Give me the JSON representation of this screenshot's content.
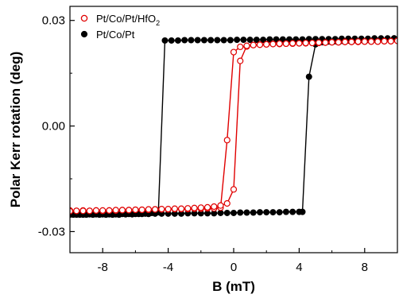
{
  "chart_data": {
    "type": "line",
    "xlabel": "B  (mT)",
    "ylabel": "Polar Kerr rotation (deg)",
    "xlim": [
      -10,
      10
    ],
    "ylim": [
      -0.036,
      0.034
    ],
    "x_ticks": [
      "-8",
      "-4",
      "0",
      "4",
      "8"
    ],
    "x_tick_values": [
      -8,
      -4,
      0,
      4,
      8
    ],
    "y_ticks": [
      "0.03",
      "0.00",
      "-0.03"
    ],
    "y_tick_values": [
      0.03,
      0.0,
      -0.03
    ],
    "legend": {
      "placement": "top-left"
    },
    "series": [
      {
        "name": "Pt/Co/Pt/HfO",
        "name_subscript": "2",
        "color": "#e00000",
        "marker": "open-circle",
        "branches": [
          {
            "x": [
              -10,
              -9.6,
              -9.2,
              -8.8,
              -8.4,
              -8.0,
              -7.6,
              -7.2,
              -6.8,
              -6.4,
              -6.0,
              -5.6,
              -5.2,
              -4.8,
              -4.4,
              -4.0,
              -3.6,
              -3.2,
              -2.8,
              -2.4,
              -2.0,
              -1.6,
              -1.2,
              -0.8,
              -0.4,
              0.0,
              0.4,
              0.8,
              1.2,
              1.6,
              2.0,
              2.4,
              2.8,
              3.2,
              3.6,
              4.0,
              4.4,
              4.8,
              5.2,
              5.6,
              6.0,
              6.4,
              6.8,
              7.2,
              7.6,
              8.0,
              8.4,
              8.8,
              9.2,
              9.6,
              10
            ],
            "y": [
              -0.024,
              -0.0241,
              -0.024,
              -0.0241,
              -0.024,
              -0.0241,
              -0.024,
              -0.024,
              -0.0239,
              -0.0239,
              -0.0238,
              -0.0238,
              -0.0238,
              -0.0237,
              -0.0237,
              -0.0237,
              -0.0236,
              -0.0236,
              -0.0236,
              -0.0235,
              -0.0235,
              -0.0234,
              -0.0234,
              -0.0232,
              -0.004,
              0.021,
              0.0225,
              0.0226,
              0.023,
              0.0231,
              0.0232,
              0.0233,
              0.0233,
              0.0234,
              0.0234,
              0.0235,
              0.0235,
              0.0236,
              0.0236,
              0.0237,
              0.0238,
              0.0238,
              0.0239,
              0.0239,
              0.0239,
              0.024,
              0.024,
              0.024,
              0.0241,
              0.0241,
              0.0242
            ]
          },
          {
            "x": [
              10,
              9.6,
              9.2,
              8.8,
              8.4,
              8.0,
              7.6,
              7.2,
              6.8,
              6.4,
              6.0,
              5.6,
              5.2,
              4.8,
              4.4,
              4.0,
              3.6,
              3.2,
              2.8,
              2.4,
              2.0,
              1.6,
              1.2,
              0.8,
              0.4,
              0.0,
              -0.4,
              -0.8,
              -1.2,
              -1.6,
              -2.0,
              -2.4,
              -2.8,
              -3.2,
              -3.6,
              -4.0,
              -4.4,
              -4.8,
              -5.2,
              -5.6,
              -6.0,
              -6.4,
              -6.8,
              -7.2,
              -7.6,
              -8.0,
              -8.4,
              -8.8,
              -9.2,
              -9.6,
              -10
            ],
            "y": [
              0.0242,
              0.0241,
              0.0241,
              0.024,
              0.024,
              0.024,
              0.024,
              0.0239,
              0.0239,
              0.0238,
              0.0238,
              0.0237,
              0.0237,
              0.0236,
              0.0236,
              0.0235,
              0.0235,
              0.0234,
              0.0234,
              0.0233,
              0.0232,
              0.0231,
              0.023,
              0.0228,
              0.0185,
              -0.018,
              -0.022,
              -0.0226,
              -0.0229,
              -0.0231,
              -0.0232,
              -0.0233,
              -0.0234,
              -0.0235,
              -0.0235,
              -0.0236,
              -0.0236,
              -0.0237,
              -0.0237,
              -0.0238,
              -0.0238,
              -0.0239,
              -0.0239,
              -0.0239,
              -0.024,
              -0.024,
              -0.024,
              -0.0241,
              -0.0241,
              -0.0241,
              -0.0242
            ]
          }
        ]
      },
      {
        "name": "Pt/Co/Pt",
        "color": "#000000",
        "marker": "filled-circle",
        "branches": [
          {
            "x": [
              -10,
              -9.6,
              -9.2,
              -8.8,
              -8.4,
              -8.0,
              -7.6,
              -7.2,
              -6.8,
              -6.4,
              -6.0,
              -5.6,
              -5.2,
              -4.8,
              -4.4,
              -4.0,
              -3.6,
              -3.2,
              -2.8,
              -2.4,
              -2.0,
              -1.6,
              -1.2,
              -0.8,
              -0.4,
              0.0,
              0.4,
              0.8,
              1.2,
              1.6,
              2.0,
              2.4,
              2.8,
              3.2,
              3.6,
              4.0,
              4.2,
              4.6,
              5.0,
              5.4,
              5.8,
              6.2,
              6.6,
              7.0,
              7.4,
              7.8,
              8.2,
              8.6,
              9.0,
              9.4,
              9.8
            ],
            "y": [
              -0.0252,
              -0.0252,
              -0.0252,
              -0.0251,
              -0.0251,
              -0.0251,
              -0.0251,
              -0.0251,
              -0.025,
              -0.025,
              -0.025,
              -0.025,
              -0.025,
              -0.0249,
              -0.0249,
              -0.0249,
              -0.0249,
              -0.0249,
              -0.0248,
              -0.0248,
              -0.0248,
              -0.0248,
              -0.0248,
              -0.0247,
              -0.0247,
              -0.0247,
              -0.0246,
              -0.0246,
              -0.0246,
              -0.0245,
              -0.0245,
              -0.0245,
              -0.0245,
              -0.0244,
              -0.0244,
              -0.0244,
              -0.0244,
              0.014,
              0.0232,
              0.0238,
              0.024,
              0.0241,
              0.0242,
              0.0243,
              0.0244,
              0.0245,
              0.0245,
              0.0246,
              0.0247,
              0.0248,
              0.0249
            ]
          },
          {
            "x": [
              9.8,
              9.4,
              9.0,
              8.6,
              8.2,
              7.8,
              7.4,
              7.0,
              6.6,
              6.2,
              5.8,
              5.4,
              5.0,
              4.6,
              4.2,
              3.8,
              3.4,
              3.0,
              2.6,
              2.2,
              1.8,
              1.4,
              1.0,
              0.6,
              0.2,
              -0.2,
              -0.6,
              -1.0,
              -1.4,
              -1.8,
              -2.2,
              -2.6,
              -3.0,
              -3.4,
              -3.8,
              -4.2,
              -4.6,
              -5.0,
              -5.4,
              -5.8,
              -6.2,
              -6.6,
              -7.0,
              -7.4,
              -7.8,
              -8.2,
              -8.6,
              -9.0,
              -9.4,
              -9.8
            ],
            "y": [
              0.0249,
              0.0249,
              0.0249,
              0.0249,
              0.0248,
              0.0248,
              0.0248,
              0.0248,
              0.0248,
              0.0247,
              0.0247,
              0.0247,
              0.0247,
              0.0247,
              0.0246,
              0.0246,
              0.0246,
              0.0246,
              0.0246,
              0.0246,
              0.0245,
              0.0245,
              0.0245,
              0.0245,
              0.0245,
              0.0244,
              0.0244,
              0.0244,
              0.0244,
              0.0244,
              0.0244,
              0.0244,
              0.0244,
              0.0243,
              0.0243,
              0.0243,
              -0.0245,
              -0.0247,
              -0.0249,
              -0.025,
              -0.0251,
              -0.0251,
              -0.0252,
              -0.0252,
              -0.0252,
              -0.0252,
              -0.0252,
              -0.0252,
              -0.0252,
              -0.0252
            ]
          }
        ]
      }
    ]
  }
}
